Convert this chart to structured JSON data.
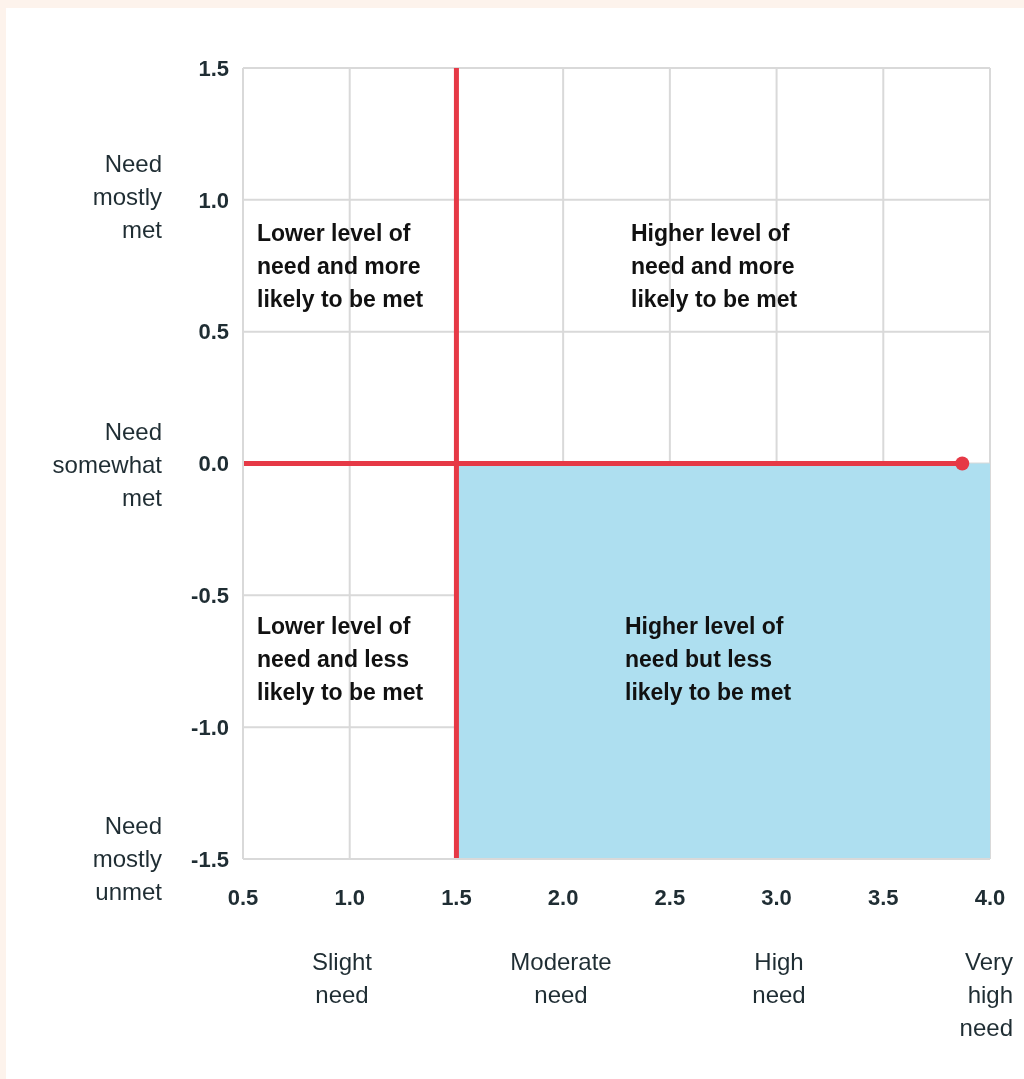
{
  "chart_data": {
    "type": "scatter",
    "xlim": [
      0.5,
      4.0
    ],
    "xticks": [
      {
        "value": 0.5,
        "label": "0.5"
      },
      {
        "value": 1.0,
        "label": "1.0"
      },
      {
        "value": 1.5,
        "label": "1.5"
      },
      {
        "value": 2.0,
        "label": "2.0"
      },
      {
        "value": 2.5,
        "label": "2.5"
      },
      {
        "value": 3.0,
        "label": "3.0"
      },
      {
        "value": 3.5,
        "label": "3.5"
      },
      {
        "value": 4.0,
        "label": "4.0"
      }
    ],
    "ylim": [
      -1.5,
      1.5
    ],
    "yticks": [
      {
        "value": -1.5,
        "label": "-1.5"
      },
      {
        "value": -1.0,
        "label": "-1.0"
      },
      {
        "value": -0.5,
        "label": "-0.5"
      },
      {
        "value": 0.0,
        "label": "0.0"
      },
      {
        "value": 0.5,
        "label": "0.5"
      },
      {
        "value": 1.0,
        "label": "1.0"
      },
      {
        "value": 1.5,
        "label": "1.5"
      }
    ],
    "grid": true,
    "series": [
      {
        "type": "area",
        "color": "#aedff0",
        "x": [
          1.5,
          4.0
        ],
        "values": [
          -1.5,
          -1.5
        ]
      },
      {
        "type": "line",
        "color": "#e63946",
        "x": [
          0.5,
          3.87
        ],
        "values": [
          0,
          0
        ],
        "marker": "none"
      },
      {
        "color": "#e63946",
        "x": [
          3.87
        ],
        "values": [
          0
        ],
        "marker": "circle"
      }
    ],
    "ref_lines": [
      {
        "axis": "x",
        "value": 1.5,
        "color": "#e63946"
      }
    ],
    "annotations": [
      "Lower level of need and more likely to be met",
      "Higher level of need and more likely to be met",
      "Lower level of need and less likely to be met",
      "Higher level of need but less likely to be met",
      "Need mostly met",
      "Need somewhat met",
      "Need mostly unmet",
      "Slight need",
      "Moderate need",
      "High need",
      "Very high need"
    ]
  }
}
